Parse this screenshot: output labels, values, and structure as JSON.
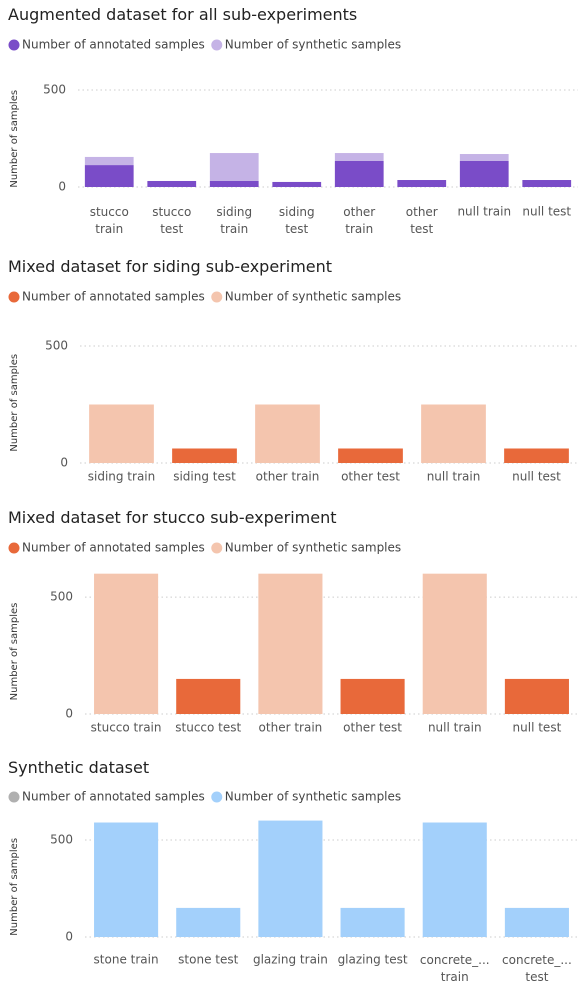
{
  "chart_data": [
    {
      "type": "bar",
      "stacked": true,
      "title": "Augmented dataset for all sub-experiments",
      "y_label": "Number of samples",
      "categories": [
        "stucco train",
        "stucco test",
        "siding train",
        "siding test",
        "other train",
        "other test",
        "null train",
        "null test"
      ],
      "series": [
        {
          "name": "Number of annotated samples",
          "color": "#7a4cc8",
          "values": [
            113,
            31,
            31,
            26,
            134,
            36,
            134,
            36
          ]
        },
        {
          "name": "Number of synthetic samples",
          "color": "#c5b3e6",
          "values": [
            42,
            null,
            144,
            null,
            41,
            null,
            36,
            null
          ]
        }
      ],
      "ylim": [
        0,
        600
      ],
      "yticks": [
        0,
        500
      ],
      "grid": true
    },
    {
      "type": "bar",
      "stacked": true,
      "title": "Mixed dataset for siding sub-experiment",
      "y_label": "Number of samples",
      "categories": [
        "siding train",
        "siding test",
        "other train",
        "other test",
        "null train",
        "null test"
      ],
      "series": [
        {
          "name": "Number of annotated samples",
          "color": "#e8693a",
          "values": [
            null,
            62,
            null,
            62,
            null,
            62
          ]
        },
        {
          "name": "Number of synthetic samples",
          "color": "#f4c5ae",
          "values": [
            250,
            null,
            250,
            null,
            250,
            null
          ]
        }
      ],
      "ylim": [
        0,
        600
      ],
      "yticks": [
        0,
        500
      ],
      "grid": true
    },
    {
      "type": "bar",
      "stacked": true,
      "title": "Mixed dataset for stucco sub-experiment",
      "y_label": "Number of samples",
      "categories": [
        "stucco train",
        "stucco test",
        "other train",
        "other test",
        "null train",
        "null test"
      ],
      "series": [
        {
          "name": "Number of annotated samples",
          "color": "#e8693a",
          "values": [
            null,
            150,
            null,
            150,
            null,
            150
          ]
        },
        {
          "name": "Number of synthetic samples",
          "color": "#f4c5ae",
          "values": [
            600,
            null,
            600,
            null,
            600,
            null
          ]
        }
      ],
      "ylim": [
        0,
        620
      ],
      "yticks": [
        0,
        500
      ],
      "grid": true
    },
    {
      "type": "bar",
      "stacked": true,
      "title": "Synthetic dataset",
      "y_label": "Number of samples",
      "categories": [
        "stone train",
        "stone test",
        "glazing train",
        "glazing test",
        "concrete_... train",
        "concrete_... test"
      ],
      "series": [
        {
          "name": "Number of annotated samples",
          "color": "#b0b0b0",
          "values": [
            null,
            null,
            null,
            null,
            null,
            null
          ]
        },
        {
          "name": "Number of synthetic samples",
          "color": "#a3d0fb",
          "values": [
            590,
            150,
            600,
            150,
            590,
            150
          ]
        }
      ],
      "ylim": [
        0,
        620
      ],
      "yticks": [
        0,
        500
      ],
      "grid": true
    }
  ]
}
